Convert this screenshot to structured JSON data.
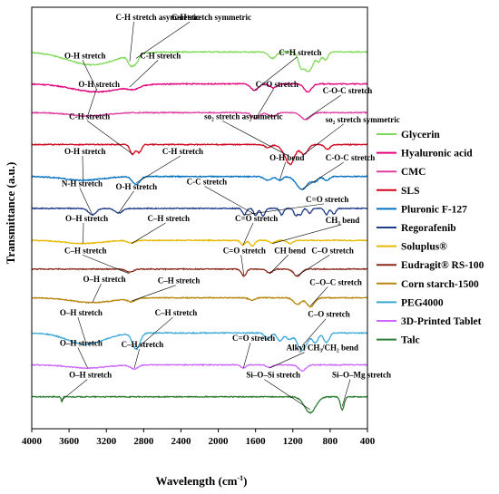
{
  "chart_data": {
    "type": "line",
    "xlabel": "Wavelength (cm",
    "xlabel_sup": "-1",
    "xlabel_close": ")",
    "ylabel": "Transmittance (a.u.)",
    "xlim": [
      4000,
      400
    ],
    "x_ticks": [
      "4000",
      "3600",
      "3200",
      "2800",
      "2400",
      "2000",
      "1600",
      "1200",
      "800",
      "400"
    ],
    "x_tick_values": [
      4000,
      3600,
      3200,
      2800,
      2400,
      2000,
      1600,
      1200,
      800,
      400
    ],
    "legend_position": "right",
    "series": [
      {
        "name": "Glycerin",
        "color": "#7ed957",
        "offset": 11.6,
        "dips": [
          [
            3360,
            0.4,
            260
          ],
          [
            2938,
            0.3,
            30
          ],
          [
            2880,
            0.25,
            30
          ],
          [
            1420,
            0.2,
            40
          ],
          [
            1110,
            0.5,
            30
          ],
          [
            1040,
            0.55,
            30
          ],
          [
            990,
            0.3,
            25
          ],
          [
            925,
            0.3,
            25
          ],
          [
            850,
            0.25,
            25
          ]
        ]
      },
      {
        "name": "Hyaluronic acid",
        "color": "#e4007c",
        "offset": 10.6,
        "dips": [
          [
            3300,
            0.25,
            260
          ],
          [
            2900,
            0.1,
            60
          ],
          [
            1610,
            0.2,
            40
          ],
          [
            1410,
            0.12,
            40
          ],
          [
            1040,
            0.25,
            40
          ]
        ]
      },
      {
        "name": "CMC",
        "color": "#e03ca0",
        "offset": 9.7,
        "dips": [
          [
            3400,
            0.1,
            200
          ],
          [
            1600,
            0.18,
            40
          ],
          [
            1420,
            0.12,
            40
          ],
          [
            1060,
            0.22,
            50
          ]
        ]
      },
      {
        "name": "SLS",
        "color": "#d0021b",
        "offset": 8.7,
        "dips": [
          [
            2920,
            0.3,
            25
          ],
          [
            2850,
            0.25,
            25
          ],
          [
            1470,
            0.1,
            30
          ],
          [
            1250,
            0.35,
            60
          ],
          [
            1220,
            0.3,
            40
          ],
          [
            1080,
            0.3,
            40
          ],
          [
            830,
            0.15,
            30
          ]
        ]
      },
      {
        "name": "Pluronic F-127",
        "color": "#0070c0",
        "offset": 7.7,
        "dips": [
          [
            3450,
            0.12,
            200
          ],
          [
            2880,
            0.25,
            40
          ],
          [
            1470,
            0.12,
            40
          ],
          [
            1340,
            0.12,
            30
          ],
          [
            1100,
            0.4,
            60
          ],
          [
            960,
            0.15,
            30
          ],
          [
            840,
            0.12,
            30
          ]
        ]
      },
      {
        "name": "Regorafenib",
        "color": "#1f3c88",
        "offset": 6.7,
        "dips": [
          [
            3350,
            0.2,
            40
          ],
          [
            3070,
            0.15,
            40
          ],
          [
            1720,
            0.2,
            20
          ],
          [
            1600,
            0.22,
            20
          ],
          [
            1520,
            0.25,
            20
          ],
          [
            1320,
            0.2,
            20
          ],
          [
            1170,
            0.22,
            20
          ],
          [
            1120,
            0.2,
            20
          ],
          [
            1020,
            0.15,
            20
          ],
          [
            840,
            0.2,
            20
          ],
          [
            760,
            0.18,
            20
          ]
        ]
      },
      {
        "name": "Soluplus®",
        "color": "#e6b800",
        "offset": 5.7,
        "dips": [
          [
            3450,
            0.1,
            200
          ],
          [
            2930,
            0.08,
            40
          ],
          [
            1735,
            0.15,
            25
          ],
          [
            1635,
            0.18,
            25
          ],
          [
            1420,
            0.08,
            30
          ],
          [
            1230,
            0.1,
            30
          ]
        ]
      },
      {
        "name": "Eudragit® RS-100",
        "color": "#8b2a1a",
        "offset": 4.8,
        "dips": [
          [
            2950,
            0.1,
            40
          ],
          [
            1725,
            0.22,
            25
          ],
          [
            1450,
            0.12,
            30
          ],
          [
            1150,
            0.22,
            40
          ]
        ]
      },
      {
        "name": "Corn starch-1500",
        "color": "#b8860b",
        "offset": 3.9,
        "dips": [
          [
            3350,
            0.15,
            220
          ],
          [
            2930,
            0.1,
            40
          ],
          [
            1640,
            0.08,
            30
          ],
          [
            1150,
            0.2,
            40
          ],
          [
            1010,
            0.28,
            40
          ]
        ]
      },
      {
        "name": "PEG4000",
        "color": "#3aa8d8",
        "offset": 2.8,
        "dips": [
          [
            3420,
            0.35,
            200
          ],
          [
            2880,
            0.5,
            40
          ],
          [
            1470,
            0.2,
            30
          ],
          [
            1340,
            0.25,
            30
          ],
          [
            1240,
            0.2,
            30
          ],
          [
            1100,
            0.55,
            50
          ],
          [
            960,
            0.3,
            30
          ],
          [
            840,
            0.3,
            30
          ]
        ]
      },
      {
        "name": "3D-Printed Tablet",
        "color": "#cc66ff",
        "offset": 1.8,
        "dips": [
          [
            3400,
            0.1,
            200
          ],
          [
            2900,
            0.12,
            40
          ],
          [
            1730,
            0.1,
            25
          ],
          [
            1450,
            0.08,
            30
          ],
          [
            1100,
            0.18,
            40
          ]
        ]
      },
      {
        "name": "Talc",
        "color": "#2e7d32",
        "offset": 0.8,
        "dips": [
          [
            3677,
            0.15,
            8
          ],
          [
            1015,
            0.5,
            60
          ],
          [
            670,
            0.4,
            20
          ]
        ]
      }
    ],
    "annotations": [
      {
        "text": "C-H stretch asymmetric",
        "x": 3100,
        "y": 12.6,
        "to_x": 2950,
        "to_y": 11.3
      },
      {
        "text": "C-H stretch symmetric",
        "x": 2500,
        "y": 12.6,
        "to_x": 2880,
        "to_y": 11.4
      },
      {
        "text": "O-H stretch",
        "x": 3650,
        "y": 11.4,
        "to_x": 3300,
        "to_y": 10.4
      },
      {
        "text": "C-H stretch",
        "x": 2840,
        "y": 11.4,
        "to_x": 2950,
        "to_y": 10.5
      },
      {
        "text": "C=H stretch",
        "x": 1350,
        "y": 11.5,
        "to_x": 1610,
        "to_y": 10.4
      },
      {
        "text": "O-H stretch",
        "x": 3500,
        "y": 10.5,
        "to_x": 3400,
        "to_y": 9.6
      },
      {
        "text": "C=O stretch",
        "x": 1600,
        "y": 10.5,
        "to_x": 1600,
        "to_y": 9.5
      },
      {
        "text": "C-O-C stretch",
        "x": 880,
        "y": 10.3,
        "to_x": 1060,
        "to_y": 9.5
      },
      {
        "text": "C-H stretch",
        "x": 3600,
        "y": 9.5,
        "to_x": 2920,
        "to_y": 8.4
      },
      {
        "text": "so₂ stretch asymmetric",
        "x": 2150,
        "y": 9.5,
        "to_x": 1250,
        "to_y": 8.35
      },
      {
        "text": "so₂ stretch symmetric",
        "x": 850,
        "y": 9.4,
        "to_x": 1080,
        "to_y": 8.4
      },
      {
        "text": "O-H stretch",
        "x": 3650,
        "y": 8.4,
        "to_x": 3450,
        "to_y": 7.6
      },
      {
        "text": "C-H stretch",
        "x": 2600,
        "y": 8.4,
        "to_x": 2880,
        "to_y": 7.5
      },
      {
        "text": "O-H bend",
        "x": 1450,
        "y": 8.2,
        "to_x": 1340,
        "to_y": 7.6
      },
      {
        "text": "C-O-C stretch",
        "x": 850,
        "y": 8.2,
        "to_x": 1100,
        "to_y": 7.3
      },
      {
        "text": "N-H stretch",
        "x": 3680,
        "y": 7.4,
        "to_x": 3350,
        "to_y": 6.5
      },
      {
        "text": "O-H stretch",
        "x": 3100,
        "y": 7.3,
        "to_x": 3070,
        "to_y": 6.55
      },
      {
        "text": "C-C stretch",
        "x": 2340,
        "y": 7.45,
        "to_x": 1600,
        "to_y": 6.5
      },
      {
        "text": "C=O stretch",
        "x": 1060,
        "y": 6.9,
        "to_x": 1720,
        "to_y": 6.5
      },
      {
        "text": "O–H stretch",
        "x": 3640,
        "y": 6.3,
        "to_x": 3450,
        "to_y": 5.6
      },
      {
        "text": "C–H stretch",
        "x": 2760,
        "y": 6.3,
        "to_x": 2930,
        "to_y": 5.6
      },
      {
        "text": "C=O stretch",
        "x": 1820,
        "y": 6.3,
        "to_x": 1735,
        "to_y": 5.55
      },
      {
        "text": "CH₃ bend",
        "x": 850,
        "y": 6.25,
        "to_x": 1420,
        "to_y": 5.6
      },
      {
        "text": "C–H stretch",
        "x": 3650,
        "y": 5.3,
        "to_x": 2950,
        "to_y": 4.65
      },
      {
        "text": "C=O stretch",
        "x": 1950,
        "y": 5.3,
        "to_x": 1725,
        "to_y": 4.6
      },
      {
        "text": "CH bend",
        "x": 1400,
        "y": 5.3,
        "to_x": 1450,
        "to_y": 4.65
      },
      {
        "text": "C–O stretch",
        "x": 1000,
        "y": 5.3,
        "to_x": 1150,
        "to_y": 4.6
      },
      {
        "text": "O–H stretch",
        "x": 3450,
        "y": 4.4,
        "to_x": 3350,
        "to_y": 3.75
      },
      {
        "text": "C–H stretch",
        "x": 2650,
        "y": 4.35,
        "to_x": 2930,
        "to_y": 3.8
      },
      {
        "text": "C–O–C stretch",
        "x": 1020,
        "y": 4.3,
        "to_x": 1010,
        "to_y": 3.65
      },
      {
        "text": "O–H stretch",
        "x": 3700,
        "y": 3.35,
        "to_x": 3420,
        "to_y": 2.5
      },
      {
        "text": "C–H stretch",
        "x": 2680,
        "y": 3.35,
        "to_x": 2880,
        "to_y": 2.3
      },
      {
        "text": "C–O stretch",
        "x": 1040,
        "y": 3.3,
        "to_x": 1100,
        "to_y": 2.4
      },
      {
        "text": "O–H stretch",
        "x": 3700,
        "y": 2.4,
        "to_x": 3400,
        "to_y": 1.7
      },
      {
        "text": "C–H stretch",
        "x": 3040,
        "y": 2.35,
        "to_x": 2900,
        "to_y": 1.7
      },
      {
        "text": "C=O stretch",
        "x": 1850,
        "y": 2.55,
        "to_x": 1730,
        "to_y": 1.7
      },
      {
        "text": "Alkyl CH₃/CH₂ bend",
        "x": 1270,
        "y": 2.25,
        "to_x": 1450,
        "to_y": 1.7
      },
      {
        "text": "O–H stretch",
        "x": 3600,
        "y": 1.4,
        "to_x": 3677,
        "to_y": 0.7
      },
      {
        "text": "Si–O–Si stretch",
        "x": 1700,
        "y": 1.4,
        "to_x": 1015,
        "to_y": 0.4
      },
      {
        "text": "Si–O–Mg stretch",
        "x": 780,
        "y": 1.4,
        "to_x": 670,
        "to_y": 0.5
      }
    ]
  }
}
